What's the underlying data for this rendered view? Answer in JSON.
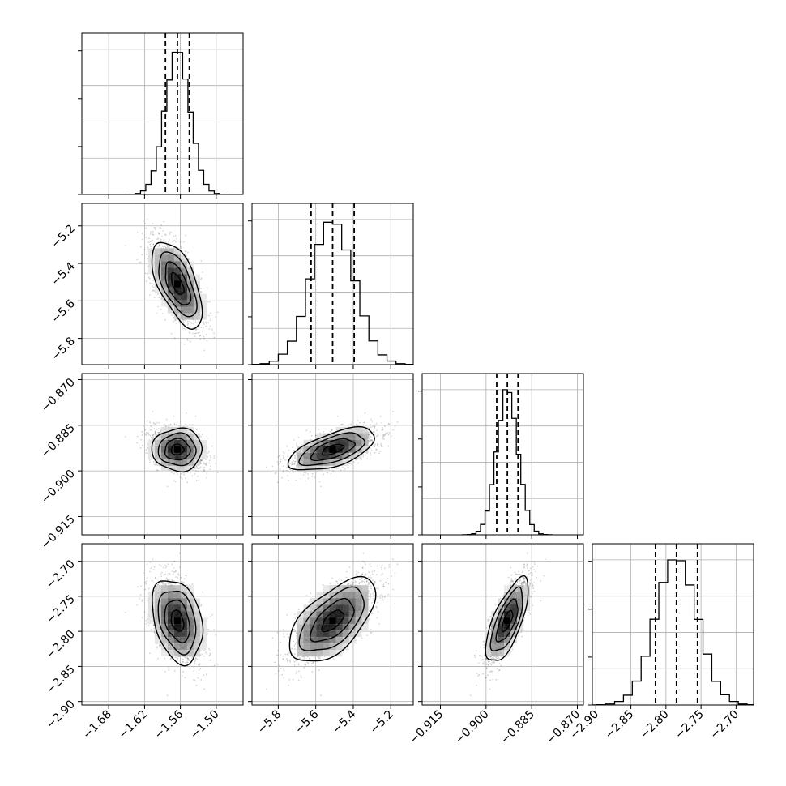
{
  "chart_data": {
    "type": "corner",
    "title": "",
    "grid": true,
    "n_params": 4,
    "params": [
      {
        "label": "",
        "range": [
          -1.725,
          -1.455
        ],
        "ticks": [
          -1.68,
          -1.62,
          -1.56,
          -1.5
        ],
        "tick_labels": [
          "−1.68",
          "−1.62",
          "−1.56",
          "−1.50"
        ],
        "quantiles": [
          -1.585,
          -1.565,
          -1.545
        ],
        "mean": -1.565,
        "sd": 0.021
      },
      {
        "label": "",
        "range": [
          -5.94,
          -5.08
        ],
        "ticks": [
          -5.8,
          -5.6,
          -5.4,
          -5.2
        ],
        "tick_labels": [
          "−5.8",
          "−5.6",
          "−5.4",
          "−5.2"
        ],
        "quantiles": [
          -5.625,
          -5.51,
          -5.395
        ],
        "mean": -5.51,
        "sd": 0.115
      },
      {
        "label": "",
        "range": [
          -0.921,
          -0.868
        ],
        "ticks": [
          -0.915,
          -0.9,
          -0.885,
          -0.87
        ],
        "tick_labels": [
          "−0.915",
          "−0.900",
          "−0.885",
          "−0.870"
        ],
        "quantiles": [
          -0.8965,
          -0.893,
          -0.8895
        ],
        "mean": -0.893,
        "sd": 0.0035
      },
      {
        "label": "",
        "range": [
          -2.905,
          -2.675
        ],
        "ticks": [
          -2.9,
          -2.85,
          -2.8,
          -2.75,
          -2.7
        ],
        "tick_labels": [
          "−2.90",
          "−2.85",
          "−2.80",
          "−2.75",
          "−2.70"
        ],
        "quantiles": [
          -2.815,
          -2.785,
          -2.755
        ],
        "mean": -2.785,
        "sd": 0.03
      }
    ],
    "correlations": [
      {
        "pair": [
          0,
          1
        ],
        "r": -0.6
      },
      {
        "pair": [
          0,
          2
        ],
        "r": 0.0
      },
      {
        "pair": [
          1,
          2
        ],
        "r": 0.6
      },
      {
        "pair": [
          0,
          3
        ],
        "r": -0.3
      },
      {
        "pair": [
          1,
          3
        ],
        "r": 0.6
      },
      {
        "pair": [
          2,
          3
        ],
        "r": 0.7
      }
    ],
    "contour_levels": [
      0.5,
      1.0,
      1.5,
      2.0
    ],
    "colors": {
      "line": "#000000",
      "grid": "#b0b0b0",
      "scatter": "#000000"
    }
  }
}
